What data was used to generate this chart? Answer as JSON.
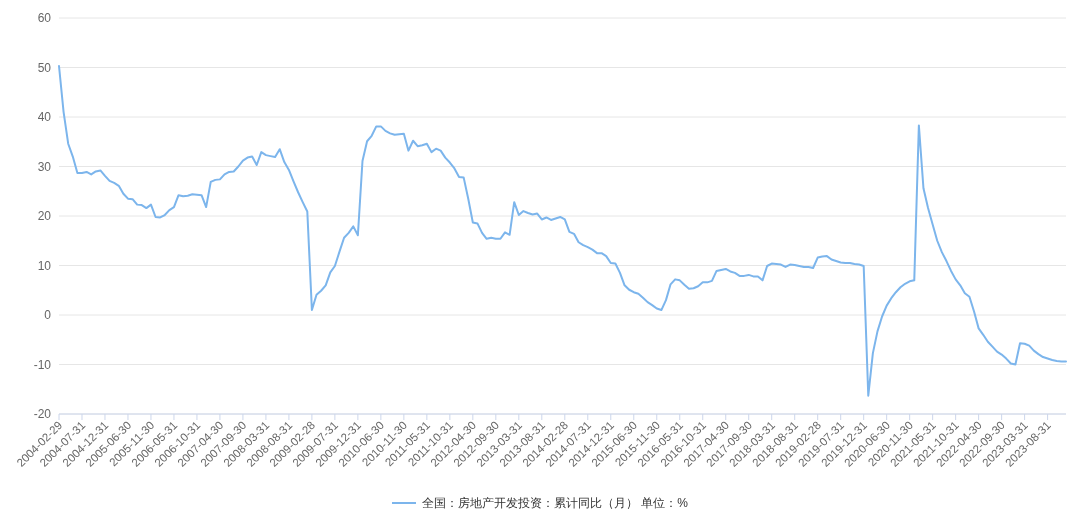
{
  "chart_data": {
    "type": "line",
    "categories": [
      "2004-02-29",
      null,
      null,
      null,
      null,
      "2004-07-31",
      null,
      null,
      null,
      null,
      "2004-12-31",
      null,
      null,
      null,
      null,
      "2005-06-30",
      null,
      null,
      null,
      null,
      "2005-11-30",
      null,
      null,
      null,
      null,
      "2006-05-31",
      null,
      null,
      null,
      null,
      "2006-10-31",
      null,
      null,
      null,
      null,
      "2007-04-30",
      null,
      null,
      null,
      null,
      "2007-09-30",
      null,
      null,
      null,
      null,
      "2008-03-31",
      null,
      null,
      null,
      null,
      "2008-08-31",
      null,
      null,
      null,
      null,
      "2009-02-28",
      null,
      null,
      null,
      null,
      "2009-07-31",
      null,
      null,
      null,
      null,
      "2009-12-31",
      null,
      null,
      null,
      null,
      "2010-06-30",
      null,
      null,
      null,
      null,
      "2010-11-30",
      null,
      null,
      null,
      null,
      "2011-05-31",
      null,
      null,
      null,
      null,
      "2011-10-31",
      null,
      null,
      null,
      null,
      "2012-04-30",
      null,
      null,
      null,
      null,
      "2012-09-30",
      null,
      null,
      null,
      null,
      "2013-03-31",
      null,
      null,
      null,
      null,
      "2013-08-31",
      null,
      null,
      null,
      null,
      "2014-02-28",
      null,
      null,
      null,
      null,
      "2014-07-31",
      null,
      null,
      null,
      null,
      "2014-12-31",
      null,
      null,
      null,
      null,
      "2015-06-30",
      null,
      null,
      null,
      null,
      "2015-11-30",
      null,
      null,
      null,
      null,
      "2016-05-31",
      null,
      null,
      null,
      null,
      "2016-10-31",
      null,
      null,
      null,
      null,
      "2017-04-30",
      null,
      null,
      null,
      null,
      "2017-09-30",
      null,
      null,
      null,
      null,
      "2018-03-31",
      null,
      null,
      null,
      null,
      "2018-08-31",
      null,
      null,
      null,
      null,
      "2019-02-28",
      null,
      null,
      null,
      null,
      "2019-07-31",
      null,
      null,
      null,
      null,
      "2019-12-31",
      null,
      null,
      null,
      null,
      "2020-06-30",
      null,
      null,
      null,
      null,
      "2020-11-30",
      null,
      null,
      null,
      null,
      "2021-05-31",
      null,
      null,
      null,
      null,
      "2021-10-31",
      null,
      null,
      null,
      null,
      "2022-04-30",
      null,
      null,
      null,
      null,
      "2022-09-30",
      null,
      null,
      null,
      null,
      "2023-03-31",
      null,
      null,
      null,
      null,
      "2023-08-31",
      null,
      null,
      null,
      null
    ],
    "series": [
      {
        "name": "全国：房地产开发投资：累计同比（月）  单位：%",
        "color": "#7cb5ec",
        "values": [
          50.3,
          41,
          34.6,
          32,
          28.7,
          28.7,
          28.9,
          28.4,
          29,
          29.2,
          28.1,
          27.1,
          26.7,
          26.1,
          24.5,
          23.5,
          23.4,
          22.3,
          22.2,
          21.6,
          22.3,
          19.8,
          19.7,
          20.2,
          21.2,
          21.8,
          24.2,
          24.0,
          24.1,
          24.4,
          24.3,
          24.2,
          21.8,
          26.9,
          27.3,
          27.4,
          28.4,
          28.9,
          29.0,
          30.0,
          31.2,
          31.8,
          32.0,
          30.3,
          32.9,
          32.3,
          32.1,
          31.9,
          33.5,
          30.9,
          29.3,
          27.0,
          24.8,
          22.8,
          20.9,
          1.0,
          4.1,
          4.9,
          6.0,
          8.6,
          9.9,
          12.8,
          15.6,
          16.6,
          17.9,
          16.1,
          31.1,
          35.1,
          36.2,
          38.1,
          38.1,
          37.2,
          36.7,
          36.4,
          36.5,
          36.6,
          33.2,
          35.2,
          34.1,
          34.3,
          34.6,
          32.9,
          33.6,
          33.2,
          31.8,
          30.8,
          29.6,
          27.9,
          27.8,
          23.5,
          18.7,
          18.5,
          16.6,
          15.4,
          15.6,
          15.4,
          15.4,
          16.7,
          16.2,
          22.8,
          20.2,
          21.0,
          20.6,
          20.3,
          20.5,
          19.3,
          19.7,
          19.2,
          19.5,
          19.8,
          19.3,
          16.8,
          16.4,
          14.7,
          14.1,
          13.7,
          13.2,
          12.5,
          12.5,
          11.9,
          10.5,
          10.4,
          8.5,
          6.0,
          5.1,
          4.6,
          4.3,
          3.5,
          2.6,
          2.0,
          1.3,
          1.0,
          3.0,
          6.2,
          7.2,
          7.0,
          6.1,
          5.3,
          5.4,
          5.8,
          6.6,
          6.6,
          6.9,
          8.9,
          9.1,
          9.3,
          8.8,
          8.5,
          7.9,
          7.9,
          8.1,
          7.8,
          7.8,
          7.0,
          9.9,
          10.4,
          10.3,
          10.2,
          9.7,
          10.2,
          10.1,
          9.9,
          9.7,
          9.7,
          9.5,
          11.6,
          11.8,
          11.9,
          11.2,
          10.9,
          10.6,
          10.5,
          10.5,
          10.3,
          10.2,
          9.9,
          -16.3,
          -7.7,
          -3.3,
          -0.3,
          1.9,
          3.4,
          4.6,
          5.6,
          6.3,
          6.8,
          7.0,
          38.3,
          25.6,
          21.6,
          18.3,
          15.0,
          12.7,
          10.9,
          8.9,
          7.2,
          6.0,
          4.4,
          3.7,
          0.7,
          -2.7,
          -4.0,
          -5.4,
          -6.4,
          -7.4,
          -8.0,
          -8.8,
          -9.8,
          -10.0,
          -5.7,
          -5.8,
          -6.2,
          -7.2,
          -7.9,
          -8.5,
          -8.8,
          -9.1,
          -9.3,
          -9.4,
          -9.4
        ]
      }
    ],
    "ylim": [
      -20,
      60
    ],
    "yticks": [
      -20,
      -10,
      0,
      10,
      20,
      30,
      40,
      50,
      60
    ],
    "grid": "y",
    "legend": "bottom",
    "marker": "none",
    "line_style": "solid"
  }
}
